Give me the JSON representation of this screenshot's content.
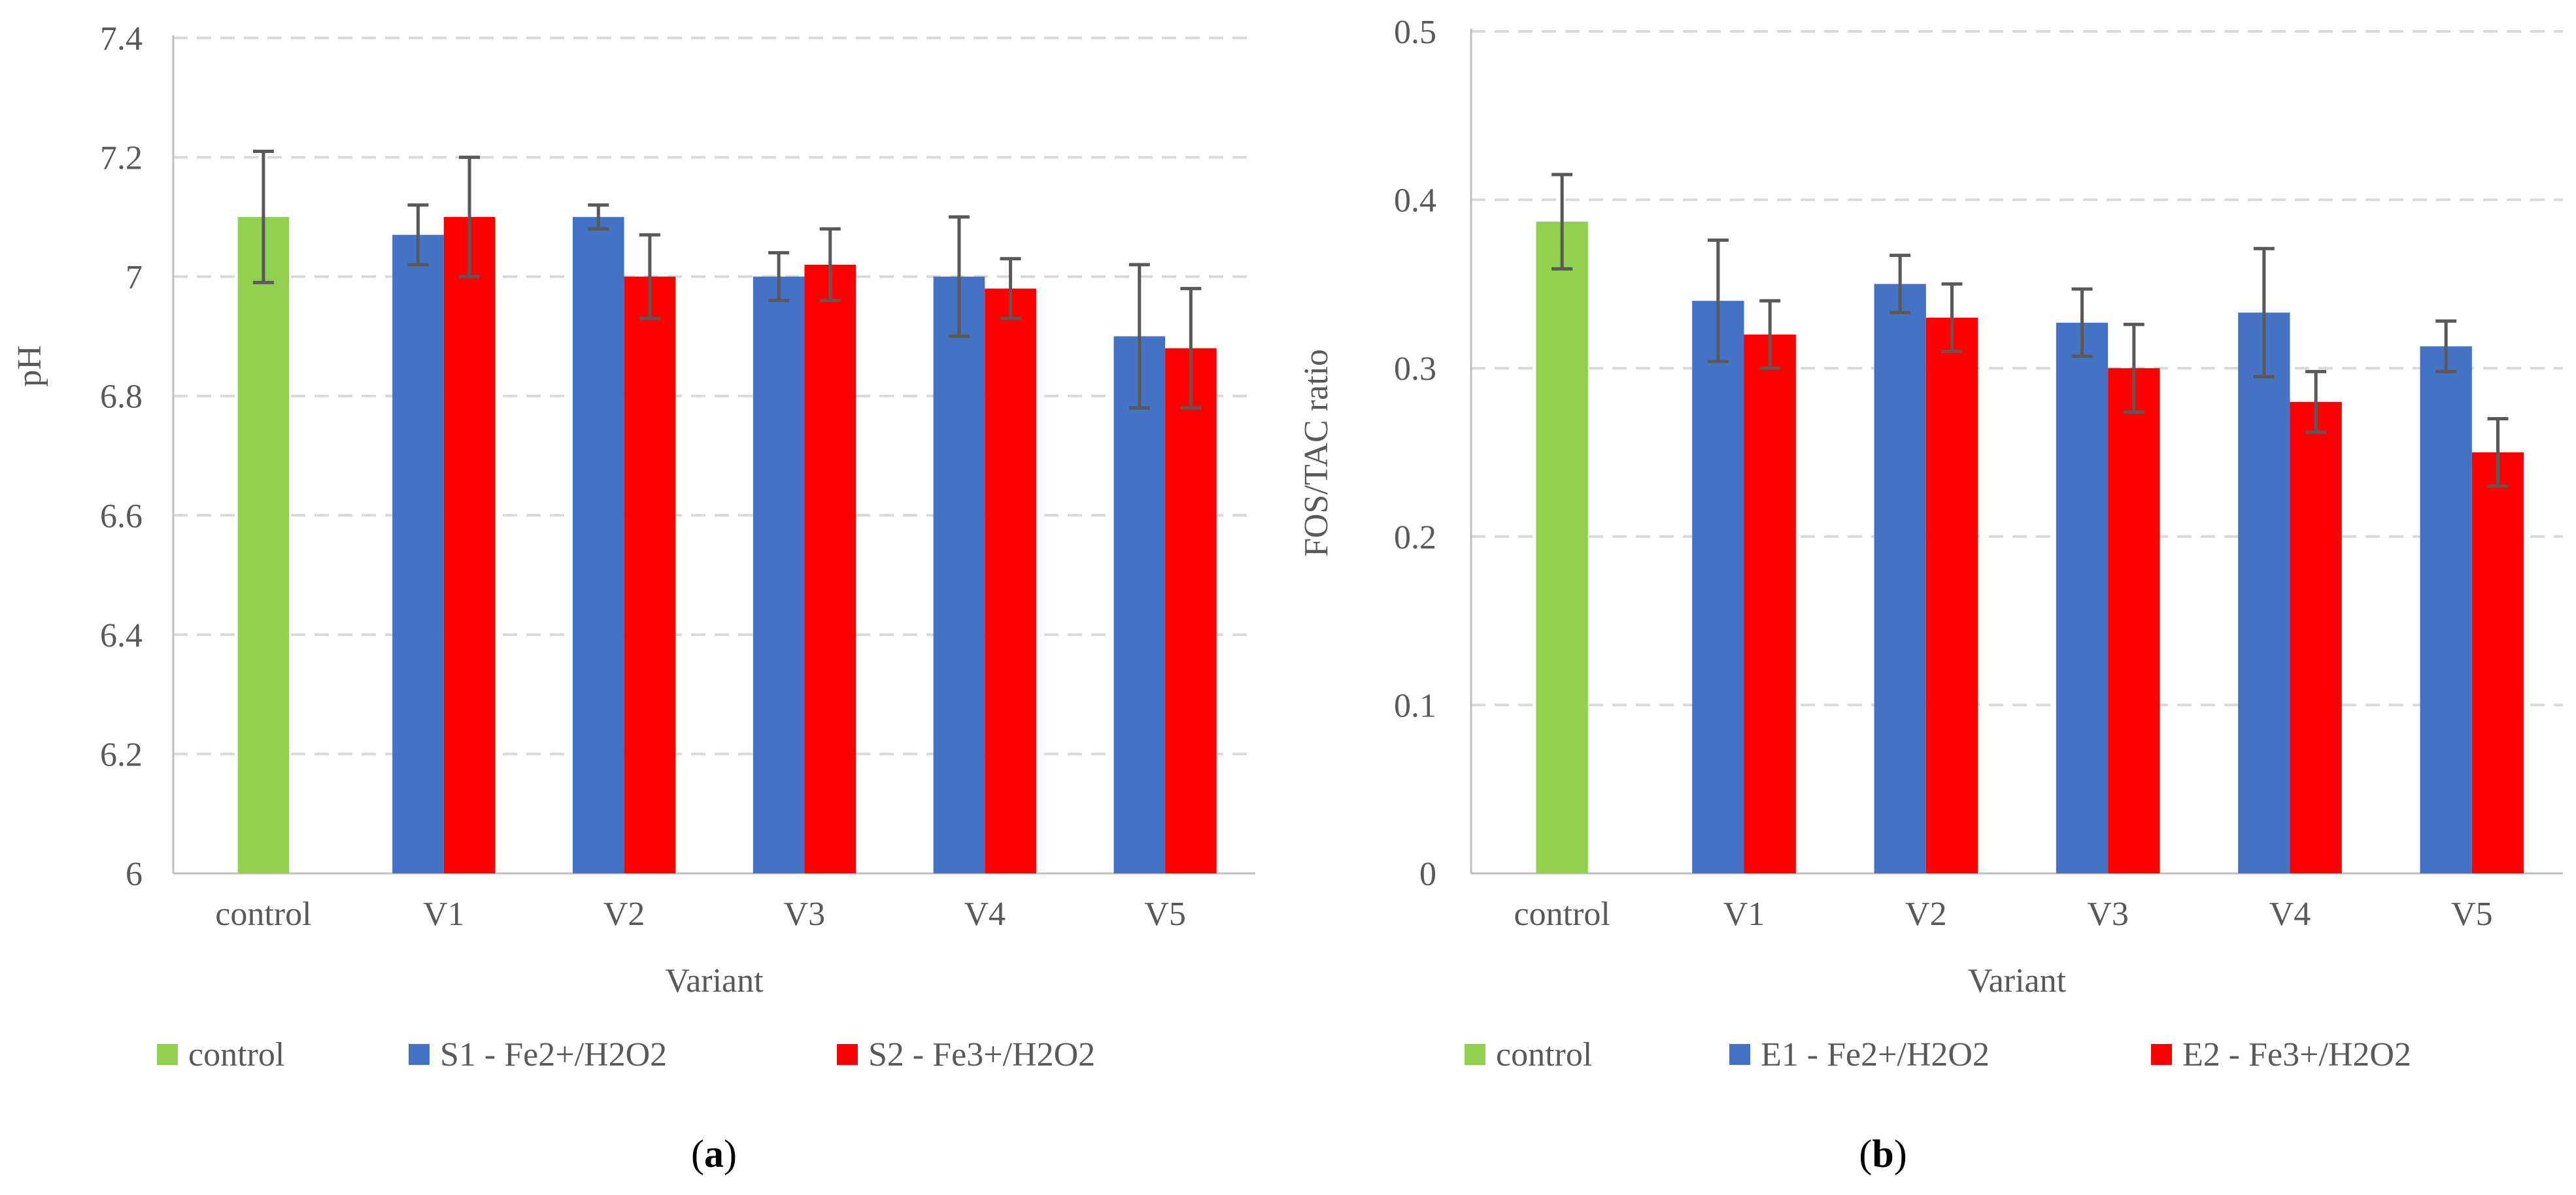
{
  "chart_data": [
    {
      "type": "bar",
      "panel_label": "a",
      "categories": [
        "control",
        "V1",
        "V2",
        "V3",
        "V4",
        "V5"
      ],
      "xlabel": "Variant",
      "ylabel": "pH",
      "ylim": [
        6,
        7.4
      ],
      "yticks": [
        "6",
        "6.2",
        "6.4",
        "6.6",
        "6.8",
        "7",
        "7.2",
        "7.4"
      ],
      "yticks_values": [
        6,
        6.2,
        6.4,
        6.6,
        6.8,
        7,
        7.2,
        7.4
      ],
      "grid": true,
      "legend_position": "bottom",
      "series": [
        {
          "name": "control",
          "color": "#92D050",
          "values": [
            7.1,
            null,
            null,
            null,
            null,
            null
          ],
          "errors": [
            0.11,
            null,
            null,
            null,
            null,
            null
          ]
        },
        {
          "name": "S1 - Fe2+/H2O2",
          "color": "#4472C4",
          "values": [
            null,
            7.07,
            7.1,
            7.0,
            7.0,
            6.9
          ],
          "errors": [
            null,
            0.05,
            0.02,
            0.04,
            0.1,
            0.12
          ]
        },
        {
          "name": "S2 - Fe3+/H2O2",
          "color": "#FF0000",
          "values": [
            null,
            7.1,
            7.0,
            7.02,
            6.98,
            6.88
          ],
          "errors": [
            null,
            0.1,
            0.07,
            0.06,
            0.05,
            0.1
          ]
        }
      ]
    },
    {
      "type": "bar",
      "panel_label": "b",
      "categories": [
        "control",
        "V1",
        "V2",
        "V3",
        "V4",
        "V5"
      ],
      "xlabel": "Variant",
      "ylabel": "FOS/TAC ratio",
      "ylim": [
        0,
        0.5
      ],
      "yticks": [
        "0",
        "0.1",
        "0.2",
        "0.3",
        "0.4",
        "0.5"
      ],
      "yticks_values": [
        0,
        0.1,
        0.2,
        0.3,
        0.4,
        0.5
      ],
      "grid": true,
      "legend_position": "bottom",
      "series": [
        {
          "name": "control",
          "color": "#92D050",
          "values": [
            0.387,
            null,
            null,
            null,
            null,
            null
          ],
          "errors": [
            0.028,
            null,
            null,
            null,
            null,
            null
          ]
        },
        {
          "name": "E1 - Fe2+/H2O2",
          "color": "#4472C4",
          "values": [
            null,
            0.34,
            0.35,
            0.327,
            0.333,
            0.313
          ],
          "errors": [
            null,
            0.036,
            0.017,
            0.02,
            0.038,
            0.015
          ]
        },
        {
          "name": "E2 - Fe3+/H2O2",
          "color": "#FF0000",
          "values": [
            null,
            0.32,
            0.33,
            0.3,
            0.28,
            0.25
          ],
          "errors": [
            null,
            0.02,
            0.02,
            0.026,
            0.018,
            0.02
          ]
        }
      ]
    }
  ]
}
